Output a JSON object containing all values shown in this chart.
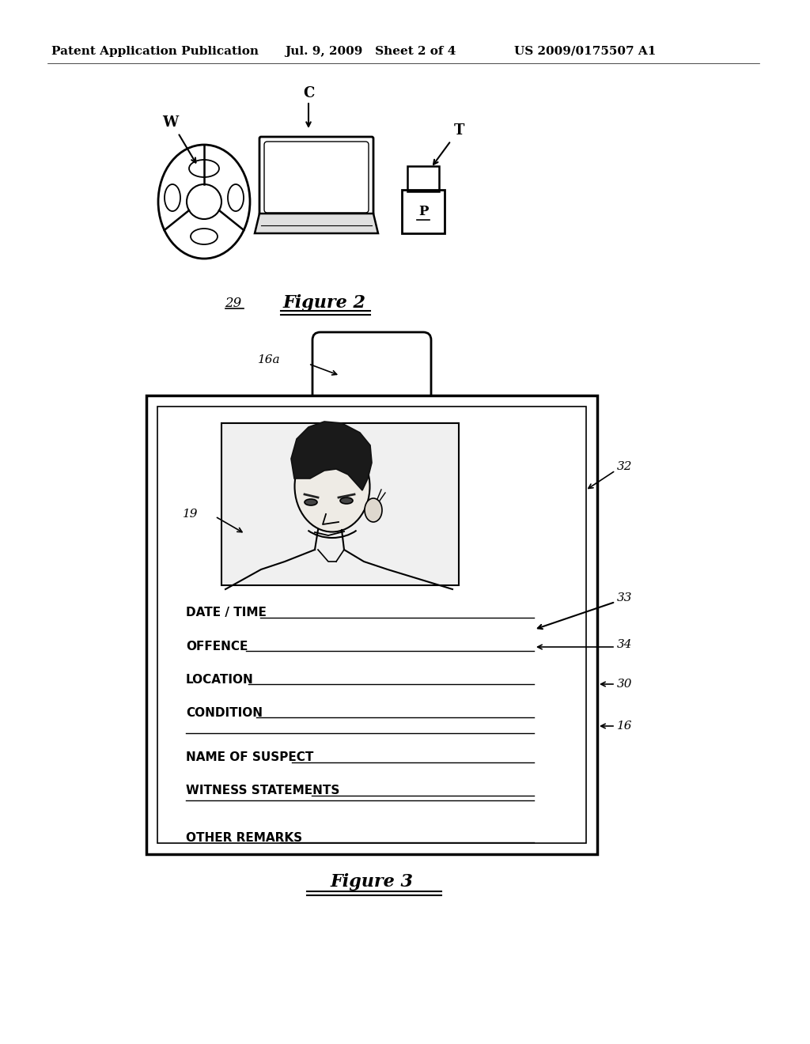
{
  "bg_color": "#ffffff",
  "header_left": "Patent Application Publication",
  "header_mid": "Jul. 9, 2009   Sheet 2 of 4",
  "header_right": "US 2009/0175507 A1",
  "fig2_label": "Figure 2",
  "fig2_number": "29",
  "fig3_label": "Figure 3",
  "label_W": "W",
  "label_C": "C",
  "label_T": "T",
  "label_16a": "16a",
  "label_19": "19",
  "label_32": "32",
  "label_33": "33",
  "label_34": "34",
  "label_30": "30",
  "label_16": "16",
  "fields": [
    "DATE / TIME",
    "OFFENCE",
    "LOCATION",
    "CONDITION",
    "NAME OF SUSPECT",
    "WITNESS STATEMENTS",
    "OTHER REMARKS"
  ]
}
